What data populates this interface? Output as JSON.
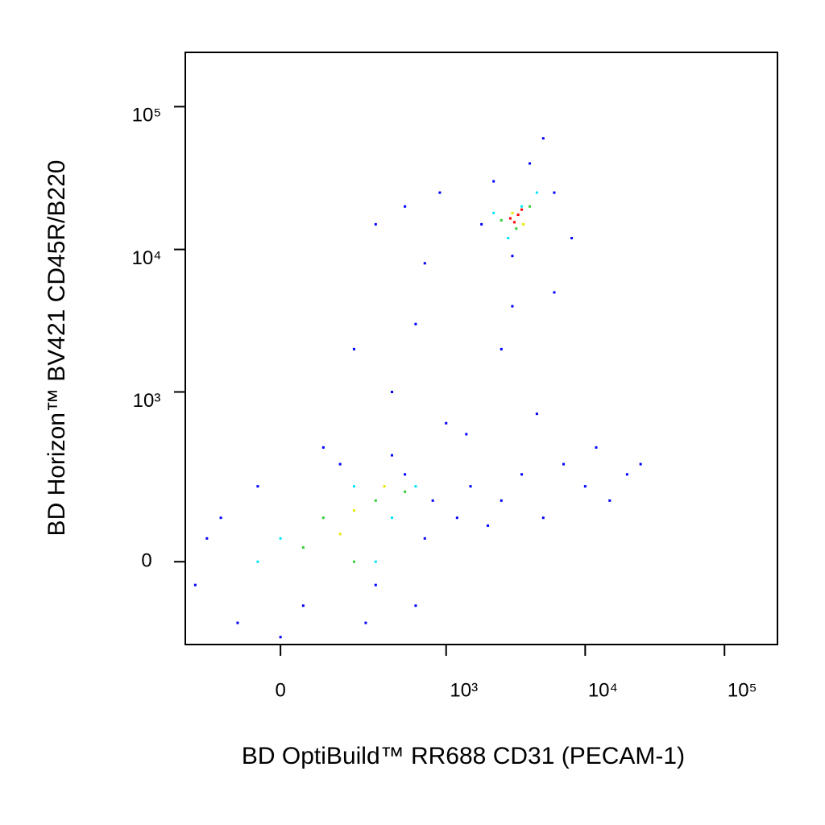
{
  "chart_data": {
    "type": "scatter",
    "x_label": "BD OptiBuild™ RR688 CD31 (PECAM-1)",
    "y_label": "BD Horizon™ BV421 CD45R/B220",
    "xscale": "biexponential",
    "yscale": "biexponential",
    "xlim": [
      -300,
      240000
    ],
    "ylim": [
      -230,
      240000
    ],
    "xticks": [
      0,
      {
        "value": 1000,
        "label": "10³"
      },
      {
        "value": 10000,
        "label": "10⁴"
      },
      {
        "value": 100000,
        "label": "10⁵"
      }
    ],
    "yticks": [
      0,
      {
        "value": 1000,
        "label": "10³"
      },
      {
        "value": 10000,
        "label": "10⁴"
      },
      {
        "value": 100000,
        "label": "10⁵"
      }
    ],
    "series": [
      {
        "color": "#0000ff",
        "x": [
          -200,
          -100,
          -50,
          50,
          150,
          300,
          500,
          800,
          1200,
          -150,
          100,
          400,
          700,
          1500,
          2000,
          2500,
          3500,
          5000,
          7000,
          10000,
          15000,
          20000,
          3000,
          4000,
          6000,
          8000,
          1800,
          2200,
          300,
          500,
          700,
          900,
          200,
          400,
          600,
          2500,
          3000,
          5000,
          6000,
          4500,
          12000,
          25000,
          -250,
          0,
          250,
          600,
          1000,
          1400
        ],
        "y": [
          50,
          -150,
          200,
          -100,
          300,
          -50,
          250,
          150,
          100,
          100,
          400,
          350,
          50,
          200,
          80,
          150,
          250,
          100,
          300,
          200,
          150,
          250,
          9000,
          40000,
          25000,
          12000,
          15000,
          30000,
          15000,
          20000,
          8000,
          25000,
          2000,
          1000,
          3000,
          2000,
          4000,
          60000,
          5000,
          700,
          400,
          300,
          -50,
          -200,
          -150,
          -100,
          600,
          500
        ]
      },
      {
        "color": "#00e5ff",
        "x": [
          0,
          200,
          400,
          -50,
          3500,
          2800,
          4500,
          600,
          300,
          2200
        ],
        "y": [
          50,
          200,
          100,
          0,
          20000,
          12000,
          25000,
          200,
          0,
          18000
        ]
      },
      {
        "color": "#33cc33",
        "x": [
          100,
          300,
          50,
          500,
          200,
          3200,
          4000,
          2500
        ],
        "y": [
          100,
          150,
          30,
          180,
          0,
          14000,
          20000,
          16000
        ]
      },
      {
        "color": "#e6e600",
        "x": [
          200,
          350,
          150,
          3000,
          3600
        ],
        "y": [
          120,
          200,
          60,
          18000,
          15000
        ]
      },
      {
        "color": "#ff0000",
        "x": [
          2900,
          3300,
          3100,
          3500
        ],
        "y": [
          16500,
          17500,
          15500,
          19000
        ]
      }
    ]
  }
}
